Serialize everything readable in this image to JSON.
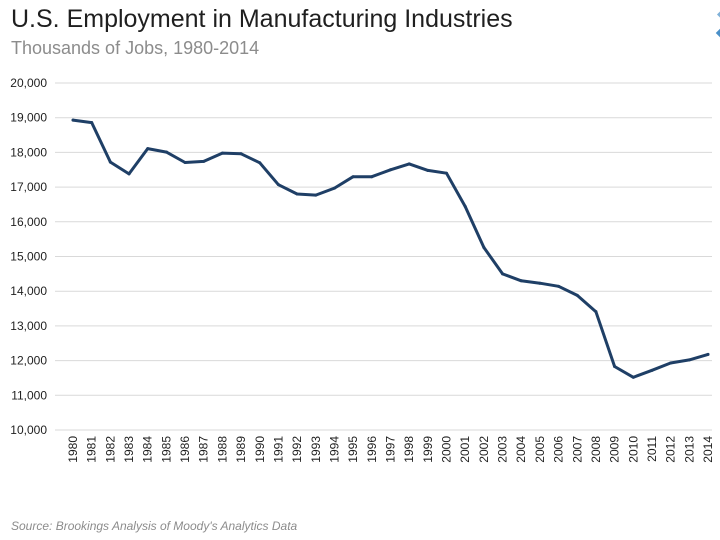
{
  "header": {
    "title": "U.S. Employment in Manufacturing Industries",
    "subtitle": "Thousands of Jobs, 1980-2014"
  },
  "footer": {
    "source": "Source: Brookings Analysis of Moody's Analytics Data"
  },
  "colors": {
    "line": "#1f3f66",
    "grid": "#d9d9d9"
  },
  "chart_data": {
    "type": "line",
    "title": "U.S. Employment in Manufacturing Industries",
    "subtitle": "Thousands of Jobs, 1980-2014",
    "xlabel": "",
    "ylabel": "",
    "ylim": [
      10000,
      20000
    ],
    "y_ticks": [
      10000,
      11000,
      12000,
      13000,
      14000,
      15000,
      16000,
      17000,
      18000,
      19000,
      20000
    ],
    "y_tick_labels": [
      "10,000",
      "11,000",
      "12,000",
      "13,000",
      "14,000",
      "15,000",
      "16,000",
      "17,000",
      "18,000",
      "19,000",
      "20,000"
    ],
    "grid": true,
    "legend": "none",
    "categories": [
      "1980",
      "1981",
      "1982",
      "1983",
      "1984",
      "1985",
      "1986",
      "1987",
      "1988",
      "1989",
      "1990",
      "1991",
      "1992",
      "1993",
      "1994",
      "1995",
      "1996",
      "1997",
      "1998",
      "1999",
      "2000",
      "2001",
      "2002",
      "2003",
      "2004",
      "2005",
      "2006",
      "2007",
      "2008",
      "2009",
      "2010",
      "2011",
      "2012",
      "2013",
      "2014"
    ],
    "series": [
      {
        "name": "Manufacturing employment",
        "values": [
          18930,
          18860,
          17720,
          17380,
          18110,
          18010,
          17710,
          17740,
          17980,
          17960,
          17700,
          17070,
          16800,
          16770,
          16970,
          17300,
          17300,
          17500,
          17670,
          17480,
          17400,
          16440,
          15260,
          14500,
          14300,
          14230,
          14140,
          13880,
          13410,
          11830,
          11520,
          11720,
          11930,
          12020,
          12180
        ]
      }
    ]
  }
}
